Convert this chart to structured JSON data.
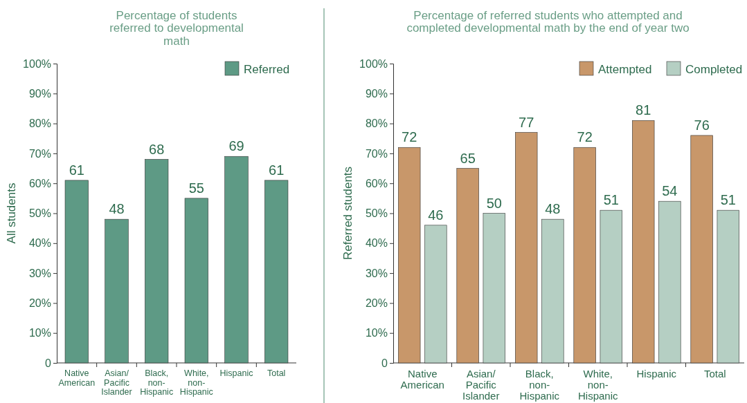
{
  "chart_data": [
    {
      "type": "bar",
      "title": "Percentage of students referred to developmental math",
      "ylabel": "All students",
      "categories": [
        "Native American",
        "Asian/Pacific Islander",
        "Black, non-Hispanic",
        "White, non-Hispanic",
        "Hispanic",
        "Total"
      ],
      "series": [
        {
          "name": "Referred",
          "color": "#5e9a85",
          "values": [
            61,
            48,
            68,
            55,
            69,
            61
          ]
        }
      ],
      "ylim": [
        0,
        100
      ],
      "yticks": [
        0,
        {
          "value": 10,
          "label": "10%"
        },
        {
          "value": 20,
          "label": "20%"
        },
        {
          "value": 30,
          "label": "30%"
        },
        {
          "value": 40,
          "label": "40%"
        },
        {
          "value": 50,
          "label": "50%"
        },
        {
          "value": 60,
          "label": "60%"
        },
        {
          "value": 70,
          "label": "70%"
        },
        {
          "value": 80,
          "label": "80%"
        },
        {
          "value": 90,
          "label": "90%"
        },
        {
          "value": 100,
          "label": "100%"
        }
      ],
      "data_labels": true,
      "legend": "top right"
    },
    {
      "type": "bar",
      "title": "Percentage of referred students who attempted and completed developmental math by the end of year two",
      "ylabel": "Referred students",
      "categories": [
        "Native American",
        "Asian/Pacific Islander",
        "Black, non-Hispanic",
        "White, non-Hispanic",
        "Hispanic",
        "Total"
      ],
      "series": [
        {
          "name": "Attempted",
          "color": "#c8976a",
          "values": [
            72,
            65,
            77,
            72,
            81,
            76
          ]
        },
        {
          "name": "Completed",
          "color": "#b5cfc3",
          "values": [
            46,
            50,
            48,
            51,
            54,
            51
          ]
        }
      ],
      "ylim": [
        0,
        100
      ],
      "yticks": [
        0,
        {
          "value": 10,
          "label": "10%"
        },
        {
          "value": 20,
          "label": "20%"
        },
        {
          "value": 30,
          "label": "30%"
        },
        {
          "value": 40,
          "label": "40%"
        },
        {
          "value": 50,
          "label": "50%"
        },
        {
          "value": 60,
          "label": "60%"
        },
        {
          "value": 70,
          "label": "70%"
        },
        {
          "value": 80,
          "label": "80%"
        },
        {
          "value": 90,
          "label": "90%"
        },
        {
          "value": 100,
          "label": "100%"
        }
      ],
      "data_labels": true,
      "legend": "top right"
    }
  ]
}
